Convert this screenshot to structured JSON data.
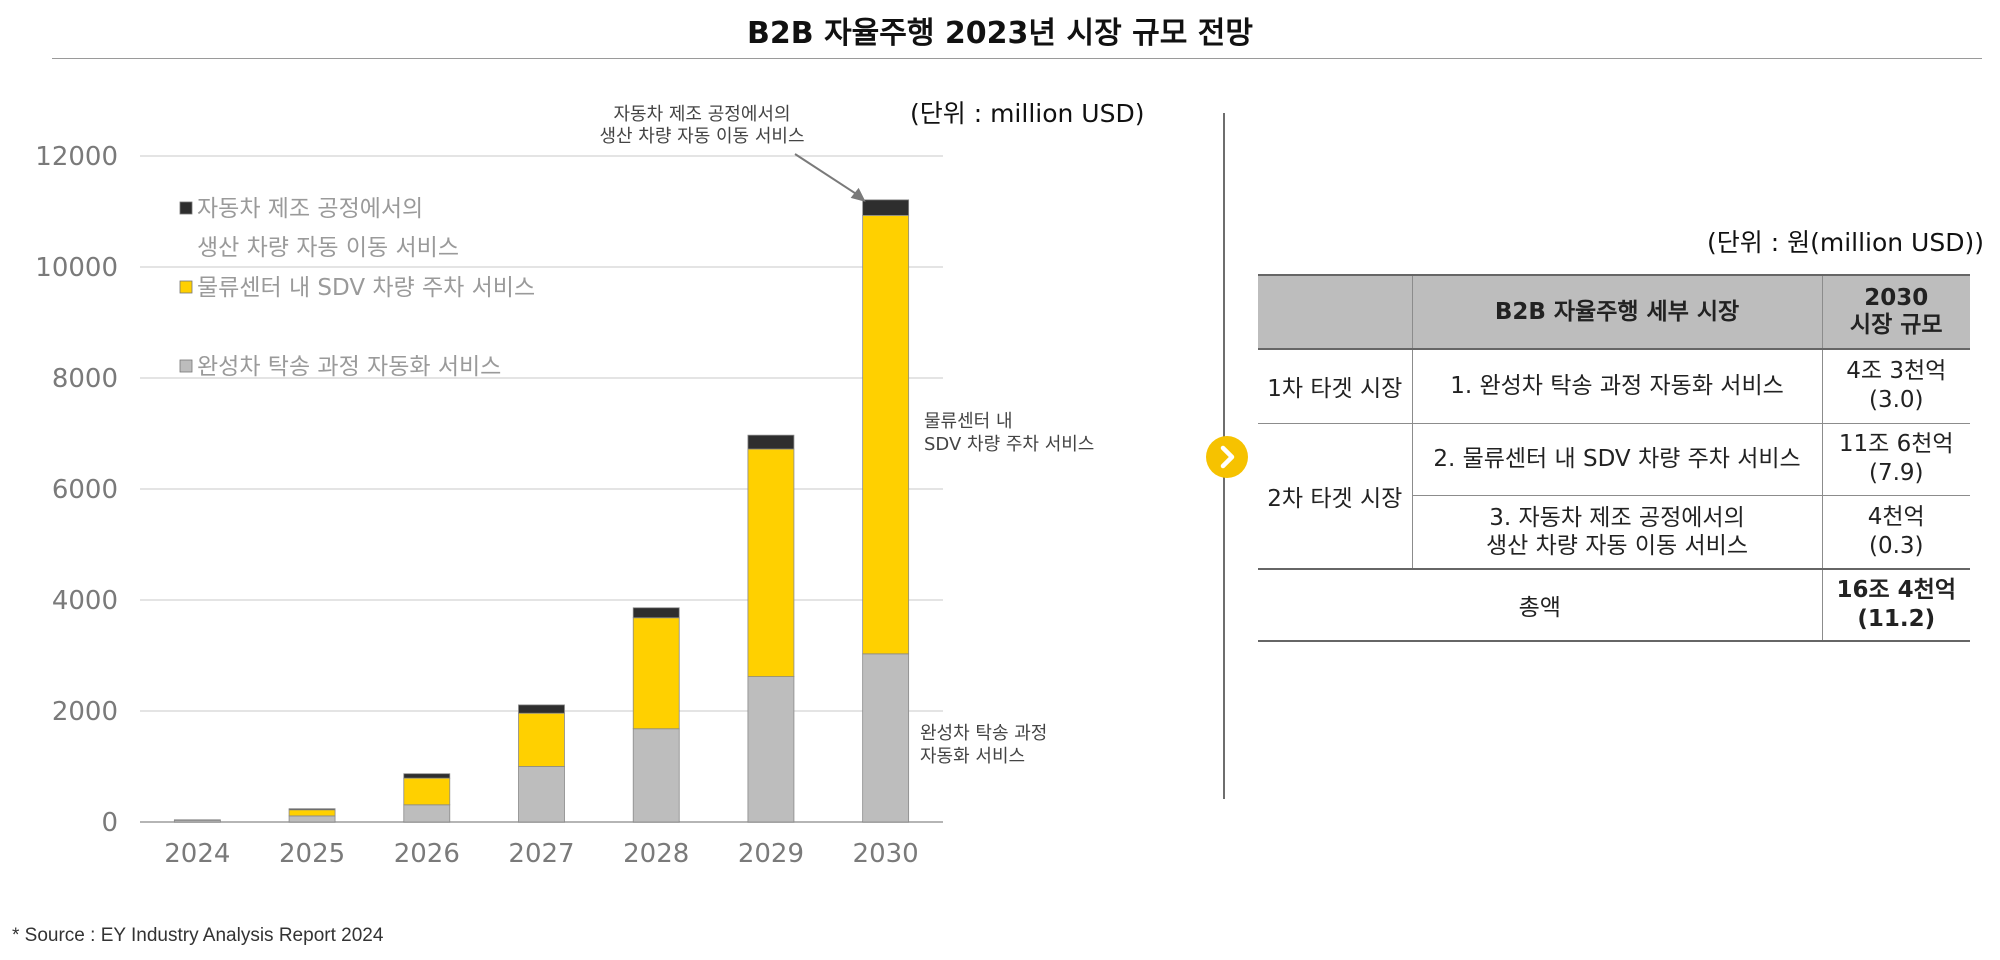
{
  "title": "B2B 자율주행 2023년 시장 규모 전망",
  "chart_unit": "(단위 : million USD)",
  "chart_data": {
    "type": "bar",
    "stacked": true,
    "categories": [
      "2024",
      "2025",
      "2026",
      "2027",
      "2028",
      "2029",
      "2030"
    ],
    "series": [
      {
        "name": "완성차 탁송 과정 자동화 서비스",
        "color": "#bdbdbd",
        "values": [
          30,
          110,
          310,
          1000,
          1680,
          2620,
          3030
        ]
      },
      {
        "name": "물류센터 내 SDV 차량 주차 서비스",
        "color": "#ffd000",
        "values": [
          10,
          110,
          480,
          960,
          2000,
          4100,
          7900
        ]
      },
      {
        "name": "자동차 제조 공정에서의 생산 차량 자동 이동 서비스",
        "color": "#2e2e2e",
        "values": [
          0,
          20,
          80,
          150,
          180,
          250,
          280
        ]
      }
    ],
    "ylim": [
      0,
      12000
    ],
    "yticks": [
      0,
      2000,
      4000,
      6000,
      8000,
      10000,
      12000
    ],
    "grid": true,
    "legend": {
      "placement": "top-left",
      "entries": [
        {
          "lines": [
            "자동차 제조 공정에서의",
            "생산 차량 자동 이동 서비스"
          ],
          "color": "#2e2e2e"
        },
        {
          "lines": [
            "물류센터 내 SDV 차량 주차 서비스"
          ],
          "color": "#ffd000"
        },
        {
          "lines": [
            "완성차 탁송 과정 자동화 서비스"
          ],
          "color": "#bdbdbd"
        }
      ]
    },
    "annotations": [
      {
        "lines": [
          "자동차 제조 공정에서의",
          "생산 차량 자동 이동 서비스"
        ],
        "target": "2030 top segment"
      },
      {
        "lines": [
          "물류센터 내",
          "SDV 차량 주차 서비스"
        ],
        "target": "2030 middle segment"
      },
      {
        "lines": [
          "완성차 탁송 과정",
          "자동화 서비스"
        ],
        "target": "2030 bottom segment"
      }
    ]
  },
  "table": {
    "unit": "(단위 : 원(million USD))",
    "header": {
      "col1": "",
      "col2": "B2B 자율주행 세부 시장",
      "col3_line1": "2030",
      "col3_line2": "시장 규모"
    },
    "rows": [
      {
        "group": "1차 타겟 시장",
        "market_line1": "1. 완성차 탁송 과정 자동화 서비스",
        "market_line2": "",
        "size_line1": "4조 3천억",
        "size_line2": "(3.0)"
      },
      {
        "group": "2차 타겟 시장",
        "market_line1": "2. 물류센터 내 SDV 차량 주차 서비스",
        "market_line2": "",
        "size_line1": "11조 6천억",
        "size_line2": "(7.9)"
      },
      {
        "group": "",
        "market_line1": "3. 자동차 제조 공정에서의",
        "market_line2": "생산 차량 자동 이동 서비스",
        "size_line1": "4천억",
        "size_line2": "(0.3)"
      }
    ],
    "total": {
      "label": "총액",
      "size_line1": "16조 4천억",
      "size_line2": "(11.2)"
    }
  },
  "source": "* Source : EY Industry Analysis Report 2024",
  "colors": {
    "accent": "#f6c200",
    "header_bg": "#bdbdbd"
  },
  "icons": {
    "divider_arrow": "chevron-right-icon"
  }
}
